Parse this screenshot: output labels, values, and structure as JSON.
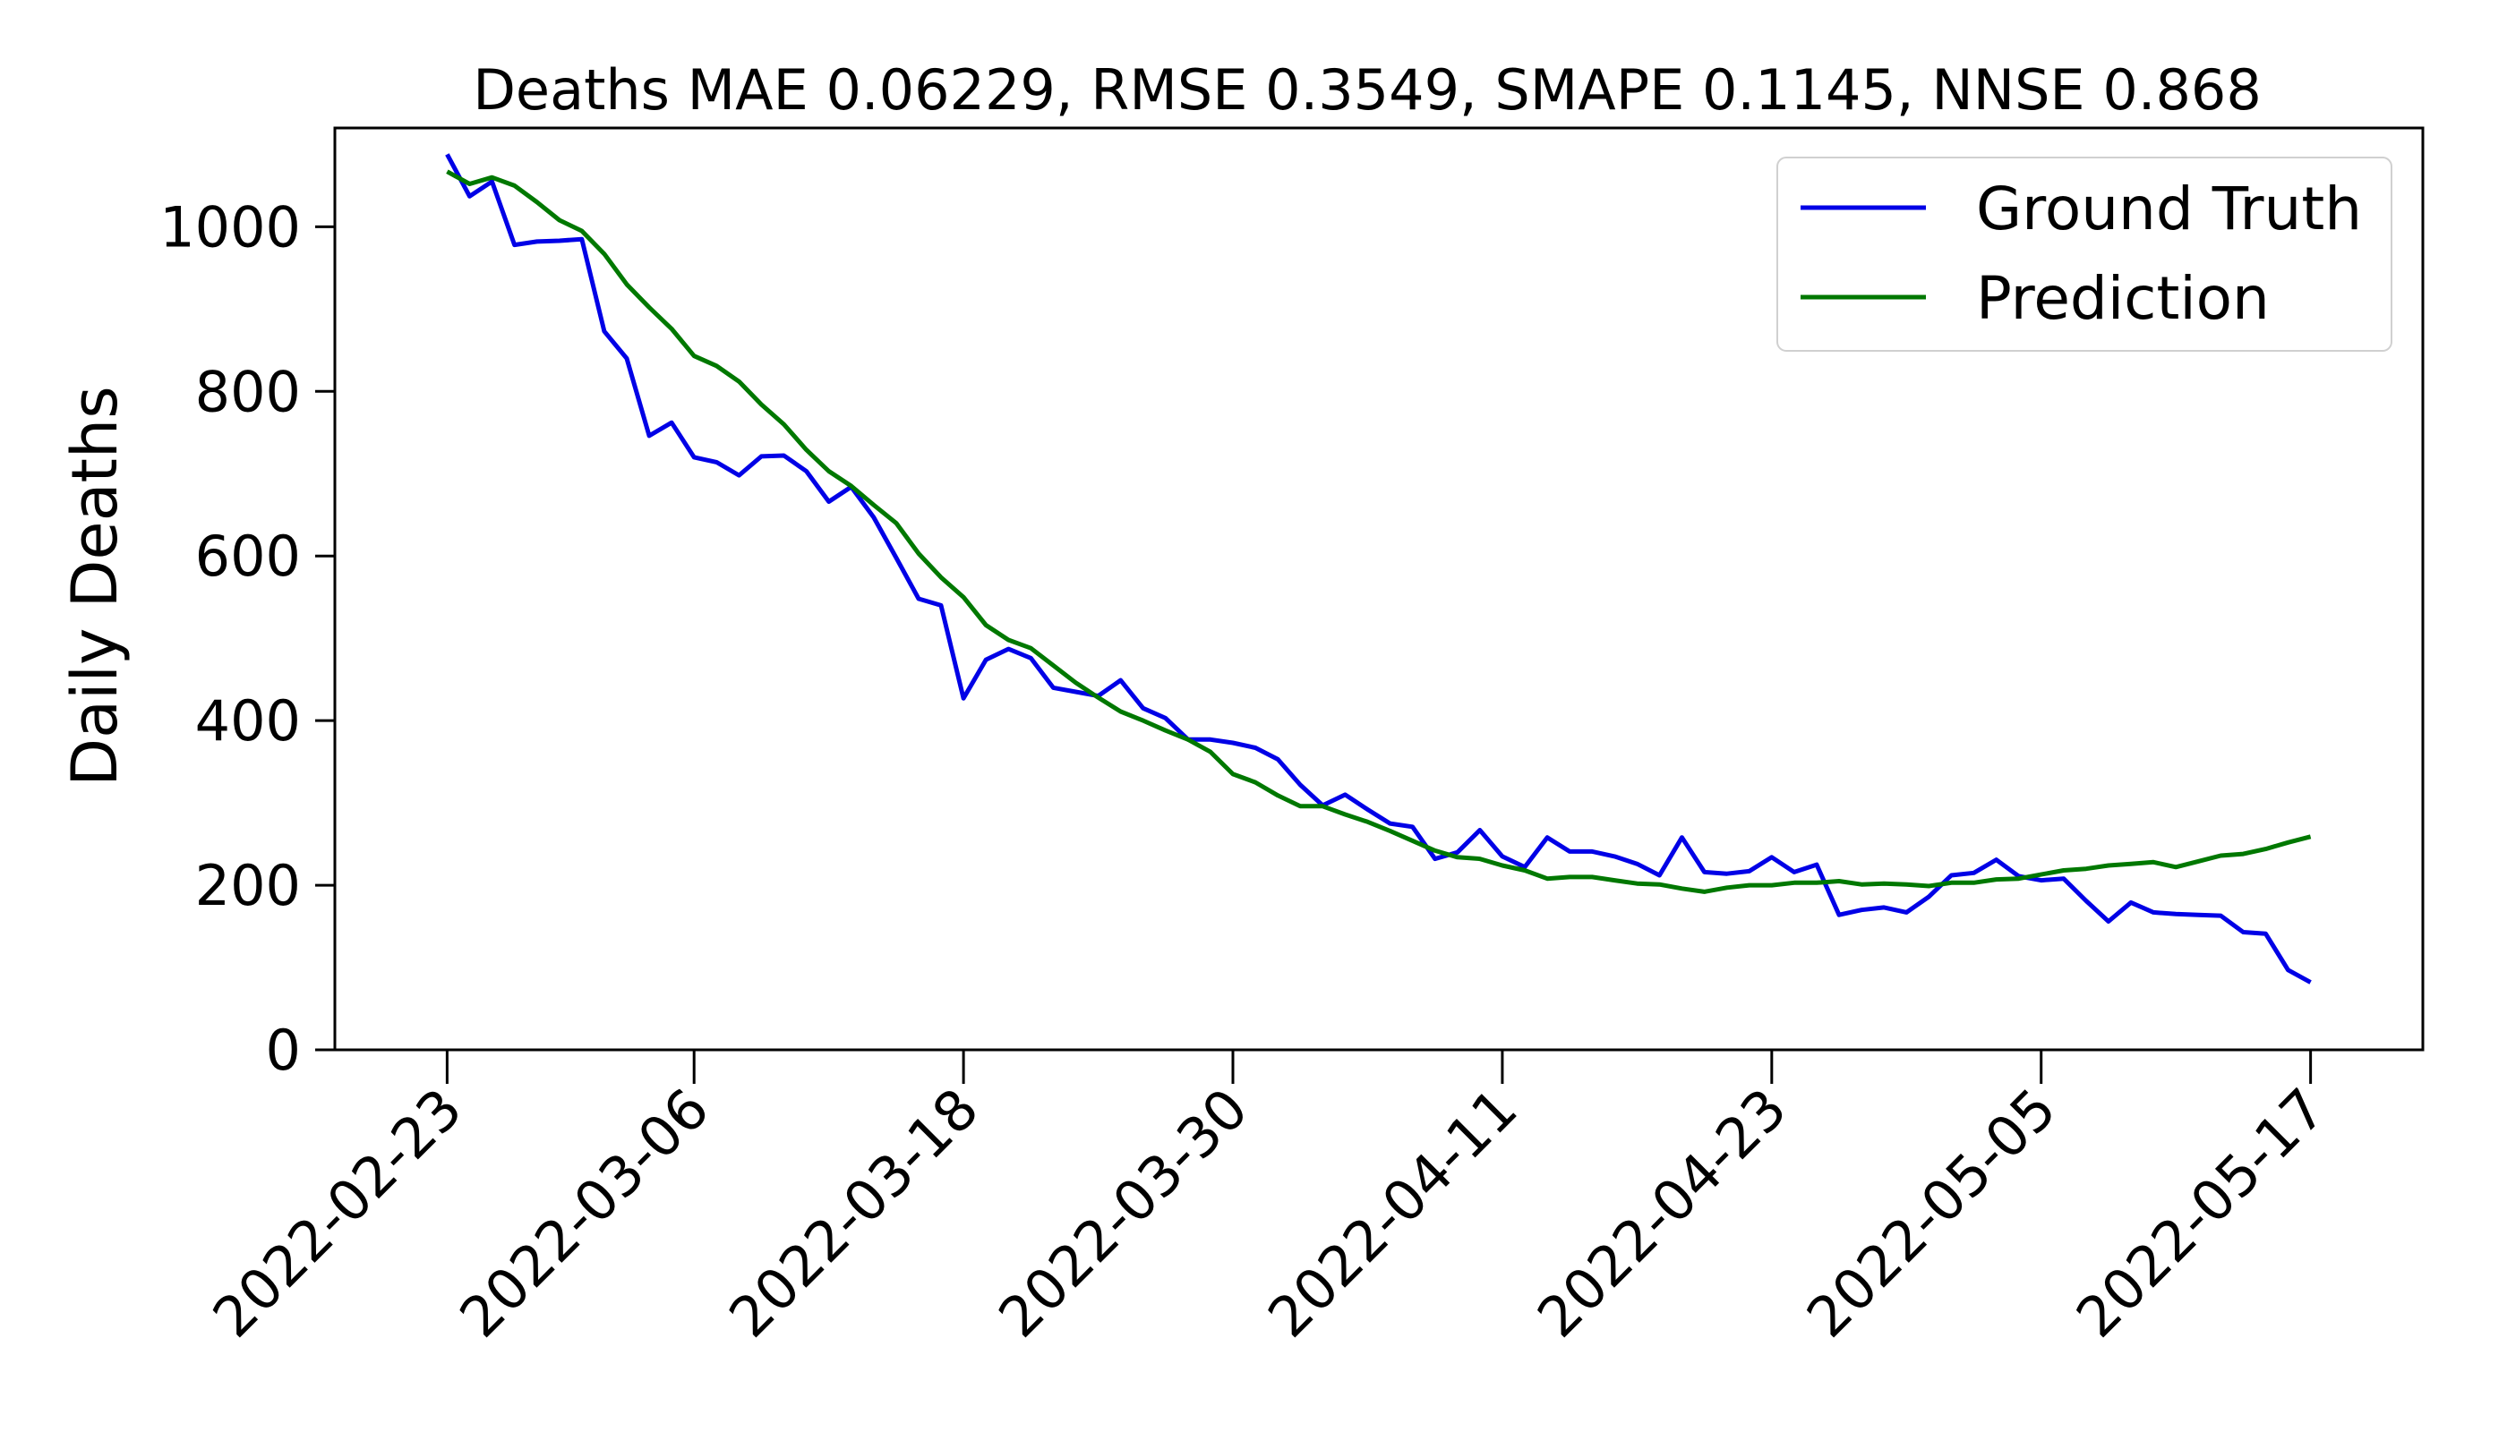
{
  "chart_data": {
    "type": "line",
    "title": "Deaths MAE 0.06229, RMSE 0.3549, SMAPE 0.1145, NNSE 0.868",
    "xlabel": "",
    "ylabel": "Daily Deaths",
    "x_start": "2022-02-23",
    "x_end": "2022-05-17",
    "xlim": [
      "2022-02-18",
      "2022-05-22"
    ],
    "ylim": [
      0,
      1120
    ],
    "x_ticks": [
      "2022-02-23",
      "2022-03-06",
      "2022-03-18",
      "2022-03-30",
      "2022-04-11",
      "2022-04-23",
      "2022-05-05",
      "2022-05-17"
    ],
    "y_ticks": [
      0,
      200,
      400,
      600,
      800,
      1000
    ],
    "grid": false,
    "legend_position": "top-right",
    "series": [
      {
        "name": "Ground Truth",
        "color": "#0000e6",
        "values": [
          1088,
          1037,
          1055,
          978,
          982,
          983,
          985,
          873,
          840,
          746,
          762,
          720,
          714,
          698,
          721,
          722,
          703,
          666,
          684,
          647,
          598,
          548,
          540,
          427,
          474,
          487,
          476,
          440,
          435,
          430,
          449,
          415,
          403,
          377,
          377,
          373,
          367,
          353,
          322,
          297,
          310,
          292,
          275,
          271,
          232,
          240,
          267,
          235,
          222,
          258,
          241,
          241,
          235,
          226,
          212,
          258,
          216,
          214,
          217,
          234,
          216,
          225,
          164,
          170,
          173,
          167,
          186,
          212,
          215,
          231,
          211,
          206,
          208,
          181,
          156,
          179,
          167,
          165,
          164,
          163,
          143,
          141,
          97,
          82
        ]
      },
      {
        "name": "Prediction",
        "color": "#007800",
        "values": [
          1067,
          1052,
          1060,
          1050,
          1030,
          1008,
          995,
          967,
          930,
          902,
          876,
          843,
          831,
          812,
          784,
          760,
          729,
          703,
          685,
          662,
          640,
          603,
          574,
          550,
          516,
          498,
          488,
          467,
          446,
          428,
          411,
          400,
          388,
          377,
          362,
          335,
          325,
          309,
          296,
          296,
          286,
          277,
          266,
          254,
          242,
          234,
          232,
          224,
          218,
          208,
          210,
          210,
          206,
          202,
          201,
          196,
          192,
          197,
          200,
          200,
          203,
          203,
          205,
          201,
          202,
          201,
          199,
          203,
          203,
          207,
          208,
          213,
          218,
          220,
          224,
          226,
          228,
          222,
          229,
          236,
          238,
          244,
          252,
          259
        ]
      }
    ]
  }
}
